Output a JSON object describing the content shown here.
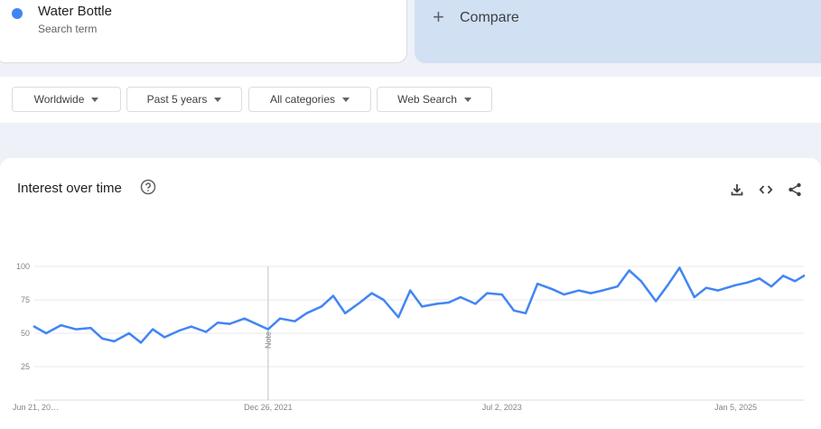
{
  "search_term": {
    "name": "Water Bottle",
    "subtitle": "Search term",
    "color": "#4285f4"
  },
  "compare": {
    "label": "Compare",
    "icon": "plus-icon"
  },
  "filters": [
    {
      "label": "Worldwide"
    },
    {
      "label": "Past 5 years"
    },
    {
      "label": "All categories"
    },
    {
      "label": "Web Search"
    }
  ],
  "chart": {
    "title": "Interest over time",
    "icons": [
      "help-icon",
      "download-icon",
      "embed-code-icon",
      "share-icon"
    ]
  },
  "chart_data": {
    "type": "line",
    "series_color": "#4285f4",
    "ylim": [
      0,
      100
    ],
    "y_ticks": [
      25,
      50,
      75,
      100
    ],
    "x_tick_labels": [
      "Jun 21, 20…",
      "Dec 26, 2021",
      "Jul 2, 2023",
      "Jan 5, 2025"
    ],
    "annotation": "Note",
    "grid": true,
    "x": [
      "2020-06-21",
      "2020-07-19",
      "2020-08-23",
      "2020-09-27",
      "2020-11-01",
      "2020-11-29",
      "2020-12-27",
      "2021-01-31",
      "2021-02-28",
      "2021-03-28",
      "2021-04-25",
      "2021-05-30",
      "2021-06-27",
      "2021-08-01",
      "2021-08-29",
      "2021-09-26",
      "2021-10-31",
      "2021-12-26",
      "2022-01-23",
      "2022-02-27",
      "2022-03-27",
      "2022-05-01",
      "2022-05-29",
      "2022-06-26",
      "2022-07-31",
      "2022-08-28",
      "2022-09-25",
      "2022-10-30",
      "2022-11-27",
      "2022-12-25",
      "2023-01-29",
      "2023-02-26",
      "2023-03-26",
      "2023-04-30",
      "2023-05-28",
      "2023-07-02",
      "2023-07-30",
      "2023-08-27",
      "2023-09-24",
      "2023-10-29",
      "2023-11-26",
      "2023-12-31",
      "2024-01-28",
      "2024-02-25",
      "2024-03-31",
      "2024-04-28",
      "2024-05-26",
      "2024-06-30",
      "2024-07-28",
      "2024-08-25",
      "2024-09-29",
      "2024-10-27",
      "2024-11-24",
      "2025-01-05",
      "2025-02-02",
      "2025-03-02",
      "2025-03-30",
      "2025-04-27",
      "2025-05-25",
      "2025-06-15"
    ],
    "values": [
      55,
      50,
      56,
      53,
      54,
      46,
      44,
      50,
      43,
      53,
      47,
      52,
      55,
      51,
      58,
      57,
      61,
      53,
      61,
      59,
      65,
      70,
      78,
      65,
      73,
      80,
      75,
      62,
      82,
      70,
      72,
      73,
      77,
      72,
      80,
      79,
      67,
      65,
      87,
      83,
      79,
      82,
      80,
      82,
      85,
      97,
      89,
      74,
      86,
      99,
      77,
      84,
      82,
      86,
      88,
      91,
      85,
      93,
      89,
      93
    ]
  }
}
